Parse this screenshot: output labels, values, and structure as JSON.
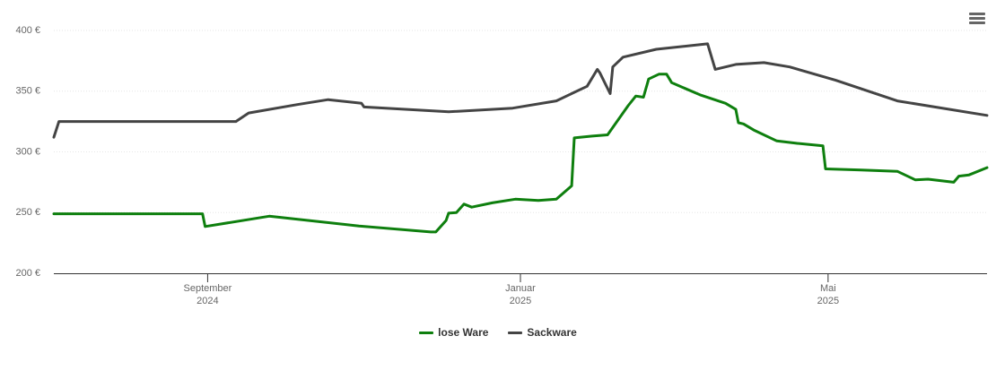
{
  "chart_data": {
    "type": "line",
    "xlim": [
      0,
      364
    ],
    "xticks": [
      {
        "value": 60,
        "label": "September\n2024"
      },
      {
        "value": 182,
        "label": "Januar\n2025"
      },
      {
        "value": 302,
        "label": "Mai\n2025"
      }
    ],
    "ylim": [
      200,
      400
    ],
    "yticks": [
      {
        "value": 200,
        "label": "200 €"
      },
      {
        "value": 250,
        "label": "250 €"
      },
      {
        "value": 300,
        "label": "300 €"
      },
      {
        "value": 350,
        "label": "350 €"
      },
      {
        "value": 400,
        "label": "400 €"
      }
    ],
    "grid": true,
    "series": [
      {
        "name": "lose Ware",
        "color": "#0e7f0e",
        "x": [
          0,
          58,
          59,
          84,
          119,
          147,
          149,
          153,
          154,
          157,
          160,
          163,
          171,
          180,
          189,
          196,
          202,
          203,
          210,
          216,
          224,
          227,
          230,
          232,
          236,
          239,
          241,
          252,
          262,
          266,
          267,
          269,
          273,
          282,
          290,
          300,
          301,
          315,
          329,
          336,
          341,
          351,
          353,
          357,
          364
        ],
        "values": [
          249,
          249,
          238.5,
          247,
          239,
          234,
          234,
          243.5,
          249.5,
          250,
          257,
          254.5,
          258,
          261,
          260,
          261,
          272,
          311.5,
          313,
          314,
          338,
          346,
          345,
          360,
          364,
          364,
          357,
          347,
          340,
          335,
          324,
          323,
          318,
          309,
          307,
          305,
          286,
          285,
          284,
          277,
          277.5,
          275,
          280,
          281,
          287
        ]
      },
      {
        "name": "Sackware",
        "color": "#444444",
        "x": [
          0,
          2,
          71,
          76,
          95,
          107,
          120,
          121,
          154,
          179,
          196,
          208,
          212,
          213,
          217,
          218,
          222,
          235,
          255,
          258,
          266,
          277,
          287,
          305,
          329,
          364
        ],
        "values": [
          312,
          325,
          325,
          332,
          339,
          343,
          340,
          337,
          333,
          336,
          342,
          354,
          368,
          365,
          348,
          370,
          378,
          384.5,
          389,
          368,
          372,
          373.5,
          370,
          359,
          342,
          330
        ]
      }
    ]
  }
}
